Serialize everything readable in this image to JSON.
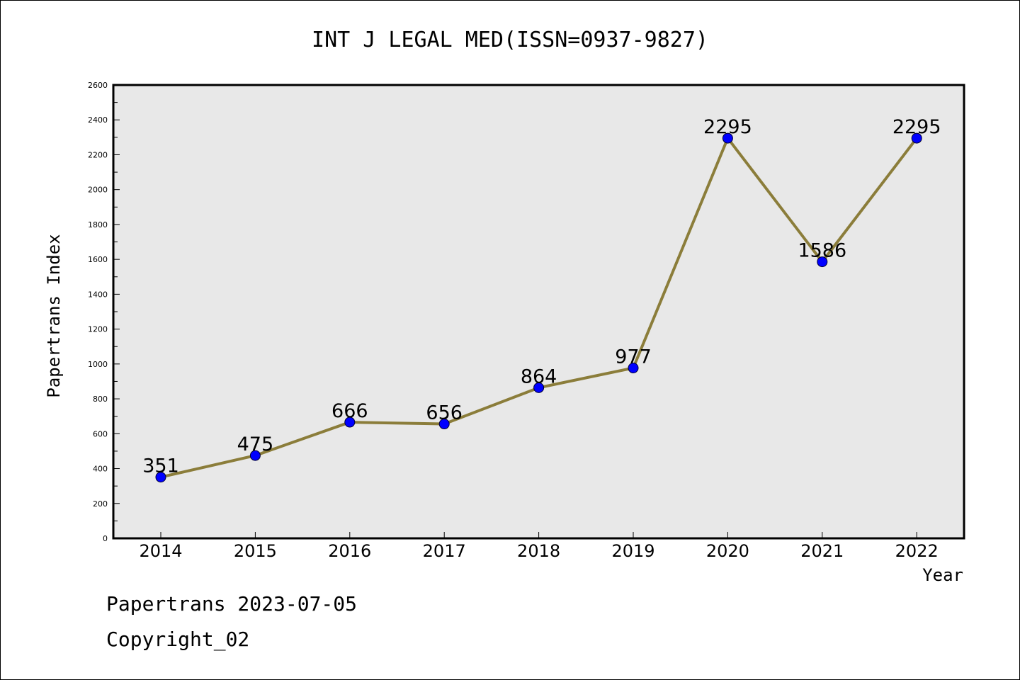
{
  "chart_data": {
    "type": "line",
    "title": "INT J LEGAL MED(ISSN=0937-9827)",
    "xlabel": "Year",
    "ylabel": "Papertrans Index",
    "categories": [
      "2014",
      "2015",
      "2016",
      "2017",
      "2018",
      "2019",
      "2020",
      "2021",
      "2022"
    ],
    "series": [
      {
        "values": [
          351,
          475,
          666,
          656,
          864,
          977,
          2295,
          1586,
          2295
        ]
      }
    ],
    "data_labels": [
      "351",
      "475",
      "666",
      "656",
      "864",
      "977",
      "2295",
      "1586",
      "2295"
    ],
    "ylim": [
      0,
      2600
    ],
    "yticks": [
      "0",
      "200",
      "400",
      "600",
      "800",
      "1000",
      "1200",
      "1400",
      "1600",
      "1800",
      "2000",
      "2200",
      "2400",
      "2600"
    ],
    "grid": false,
    "colors": {
      "line": "#8b7d3a",
      "marker": "#0000ff",
      "plot_background": "#e8e8e8"
    }
  },
  "footer": {
    "line1": "Papertrans 2023-07-05",
    "line2": "Copyright_02"
  }
}
